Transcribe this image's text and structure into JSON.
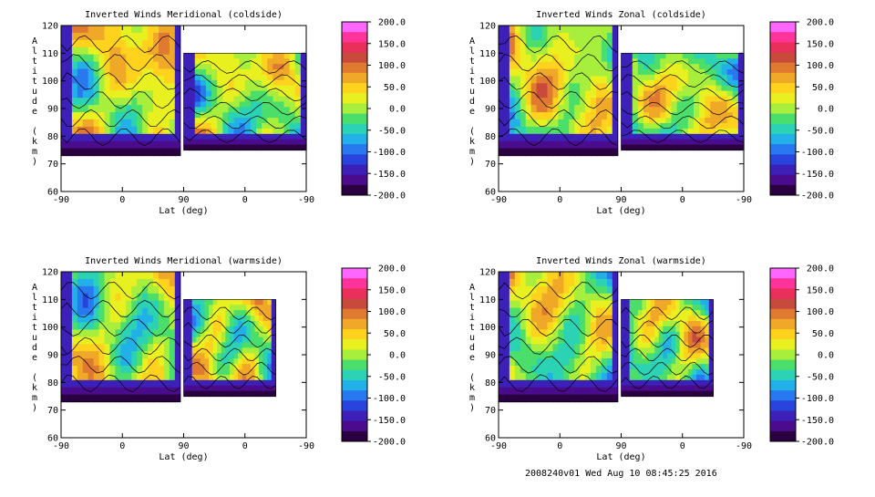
{
  "footer": "2008240v01 Wed Aug 10 08:45:25 2016",
  "colorbar": {
    "labels": [
      "200.0",
      "150.0",
      "100.0",
      "50.0",
      "0.0",
      "-50.0",
      "-100.0",
      "-150.0",
      "-200.0"
    ],
    "colors": [
      "#ff66ff",
      "#ff3399",
      "#e8305a",
      "#c84a3c",
      "#e07a30",
      "#f0a828",
      "#ffd21e",
      "#e8f020",
      "#a8ee3c",
      "#4cde6a",
      "#2cd2b4",
      "#22b0e8",
      "#2878f0",
      "#2844dc",
      "#3c20b8",
      "#4a0c8c",
      "#2a0040"
    ]
  },
  "axis": {
    "x_ticks": [
      "-90",
      "0",
      "90",
      "0",
      "-90"
    ],
    "y_ticks": [
      "120",
      "110",
      "100",
      "90",
      "80",
      "70",
      "60"
    ],
    "xlabel": "Lat (deg)",
    "ylabel": "Altitude (km)"
  },
  "chart_data": [
    {
      "type": "heatmap",
      "title": "Inverted Winds Meridional (coldside)",
      "xlabel": "Lat (deg)",
      "ylabel": "Altitude (km)",
      "ylim": [
        60,
        120
      ],
      "zlim": [
        -200,
        200
      ],
      "x_ticks": [
        "-90",
        "0",
        "90",
        "0",
        "-90"
      ],
      "data_extent": {
        "left_lat": [
          -90,
          85
        ],
        "left_alt": [
          73,
          120
        ],
        "right_lat": [
          90,
          -90
        ],
        "right_alt": [
          75,
          110
        ]
      }
    },
    {
      "type": "heatmap",
      "title": "Inverted Winds Zonal (coldside)",
      "xlabel": "Lat (deg)",
      "ylabel": "Altitude (km)",
      "ylim": [
        60,
        120
      ],
      "zlim": [
        -200,
        200
      ],
      "x_ticks": [
        "-90",
        "0",
        "90",
        "0",
        "-90"
      ],
      "data_extent": {
        "left_lat": [
          -90,
          85
        ],
        "left_alt": [
          73,
          120
        ],
        "right_lat": [
          90,
          -90
        ],
        "right_alt": [
          75,
          110
        ]
      }
    },
    {
      "type": "heatmap",
      "title": "Inverted Winds Meridional (warmside)",
      "xlabel": "Lat (deg)",
      "ylabel": "Altitude (km)",
      "ylim": [
        60,
        120
      ],
      "zlim": [
        -200,
        200
      ],
      "x_ticks": [
        "-90",
        "0",
        "90",
        "0",
        "-90"
      ],
      "data_extent": {
        "left_lat": [
          -90,
          85
        ],
        "left_alt": [
          73,
          120
        ],
        "right_lat": [
          90,
          -45
        ],
        "right_alt": [
          75,
          110
        ]
      }
    },
    {
      "type": "heatmap",
      "title": "Inverted Winds Zonal (warmside)",
      "xlabel": "Lat (deg)",
      "ylabel": "Altitude (km)",
      "ylim": [
        60,
        120
      ],
      "zlim": [
        -200,
        200
      ],
      "x_ticks": [
        "-90",
        "0",
        "90",
        "0",
        "-90"
      ],
      "data_extent": {
        "left_lat": [
          -90,
          85
        ],
        "left_alt": [
          73,
          120
        ],
        "right_lat": [
          90,
          -45
        ],
        "right_alt": [
          75,
          110
        ]
      }
    }
  ]
}
